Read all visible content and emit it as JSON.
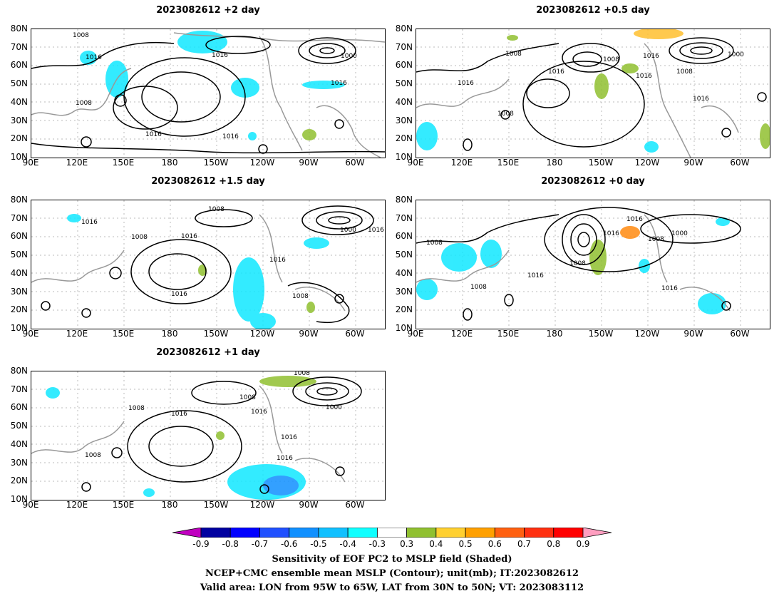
{
  "panels": [
    {
      "title": "2023082612  +2 day"
    },
    {
      "title": "2023082612  +0.5 day"
    },
    {
      "title": "2023082612  +1.5 day"
    },
    {
      "title": "2023082612  +0 day"
    },
    {
      "title": "2023082612  +1 day"
    }
  ],
  "lat_ticks": [
    "80N",
    "70N",
    "60N",
    "50N",
    "40N",
    "30N",
    "20N",
    "10N"
  ],
  "lon_ticks": [
    "90E",
    "120E",
    "150E",
    "180",
    "150W",
    "120W",
    "90W",
    "60W"
  ],
  "contour_labels": {
    "p0": [
      "1008",
      "1016",
      "1008",
      "1016",
      "1016",
      "1016",
      "1000",
      "1016"
    ],
    "p1": [
      "1008",
      "1008",
      "1016",
      "1016",
      "1000",
      "1008",
      "1016",
      "1016",
      "1008",
      "1016"
    ],
    "p2": [
      "1008",
      "1016",
      "1008",
      "1016",
      "1000",
      "1016",
      "1016",
      "1008",
      "1016"
    ],
    "p3": [
      "1016",
      "1016",
      "1008",
      "1000",
      "1008",
      "1008",
      "1016",
      "1008",
      "1016"
    ],
    "p4": [
      "1008",
      "1008",
      "1016",
      "1008",
      "1016",
      "1000",
      "1016",
      "1008",
      "1016"
    ]
  },
  "colorbar": {
    "colors": [
      "#c000c0",
      "#0000a0",
      "#0000ff",
      "#2050ff",
      "#1090ff",
      "#10c0ff",
      "#10ffff",
      "#ffffff",
      "#90c030",
      "#ffd030",
      "#ffa000",
      "#ff6010",
      "#ff3010",
      "#ff0000",
      "#ff9ec0"
    ],
    "labels": [
      "-0.9",
      "-0.8",
      "-0.7",
      "-0.6",
      "-0.5",
      "-0.4",
      "-0.3",
      "0.3",
      "0.4",
      "0.5",
      "0.6",
      "0.7",
      "0.8",
      "0.9"
    ]
  },
  "caption": {
    "line1": "Sensitivity of EOF PC2 to MSLP field (Shaded)",
    "line2": "NCEP+CMC ensemble mean MSLP (Contour); unit(mb); IT:2023082612",
    "line3": "Valid area: LON from 95W to 65W, LAT from 30N to 50N; VT: 2023083112"
  }
}
